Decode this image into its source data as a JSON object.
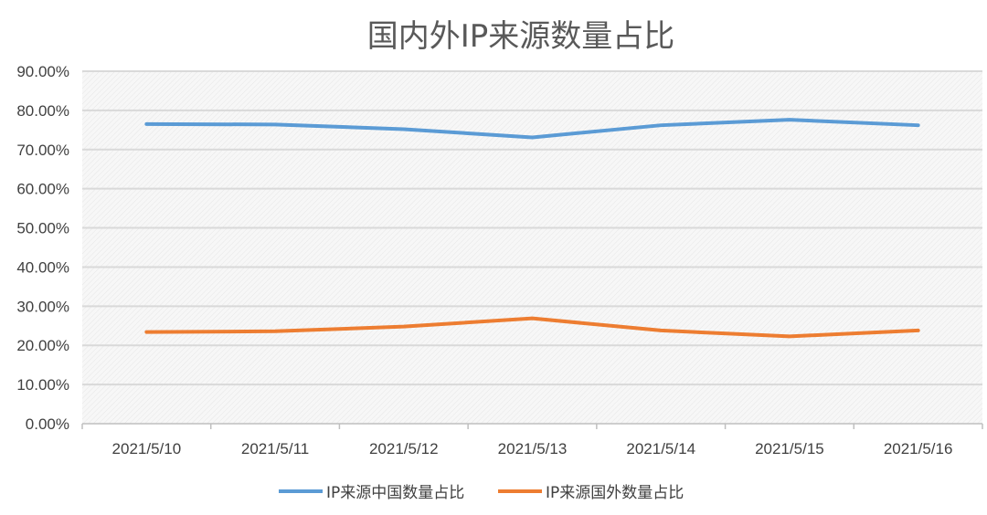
{
  "chart_data": {
    "type": "line",
    "title": "国内外IP来源数量占比",
    "xlabel": "",
    "ylabel": "",
    "categories": [
      "2021/5/10",
      "2021/5/11",
      "2021/5/12",
      "2021/5/13",
      "2021/5/14",
      "2021/5/15",
      "2021/5/16"
    ],
    "series": [
      {
        "name": "IP来源中国数量占比",
        "color": "#5B9BD5",
        "values": [
          76.5,
          76.4,
          75.2,
          73.1,
          76.2,
          77.6,
          76.2
        ]
      },
      {
        "name": "IP来源国外数量占比",
        "color": "#ED7D31",
        "values": [
          23.4,
          23.6,
          24.8,
          26.9,
          23.8,
          22.3,
          23.8
        ]
      }
    ],
    "ylim": [
      0,
      90
    ],
    "yticks": [
      "0.00%",
      "10.00%",
      "20.00%",
      "30.00%",
      "40.00%",
      "50.00%",
      "60.00%",
      "70.00%",
      "80.00%",
      "90.00%"
    ],
    "grid": true,
    "legend": "bottom"
  }
}
